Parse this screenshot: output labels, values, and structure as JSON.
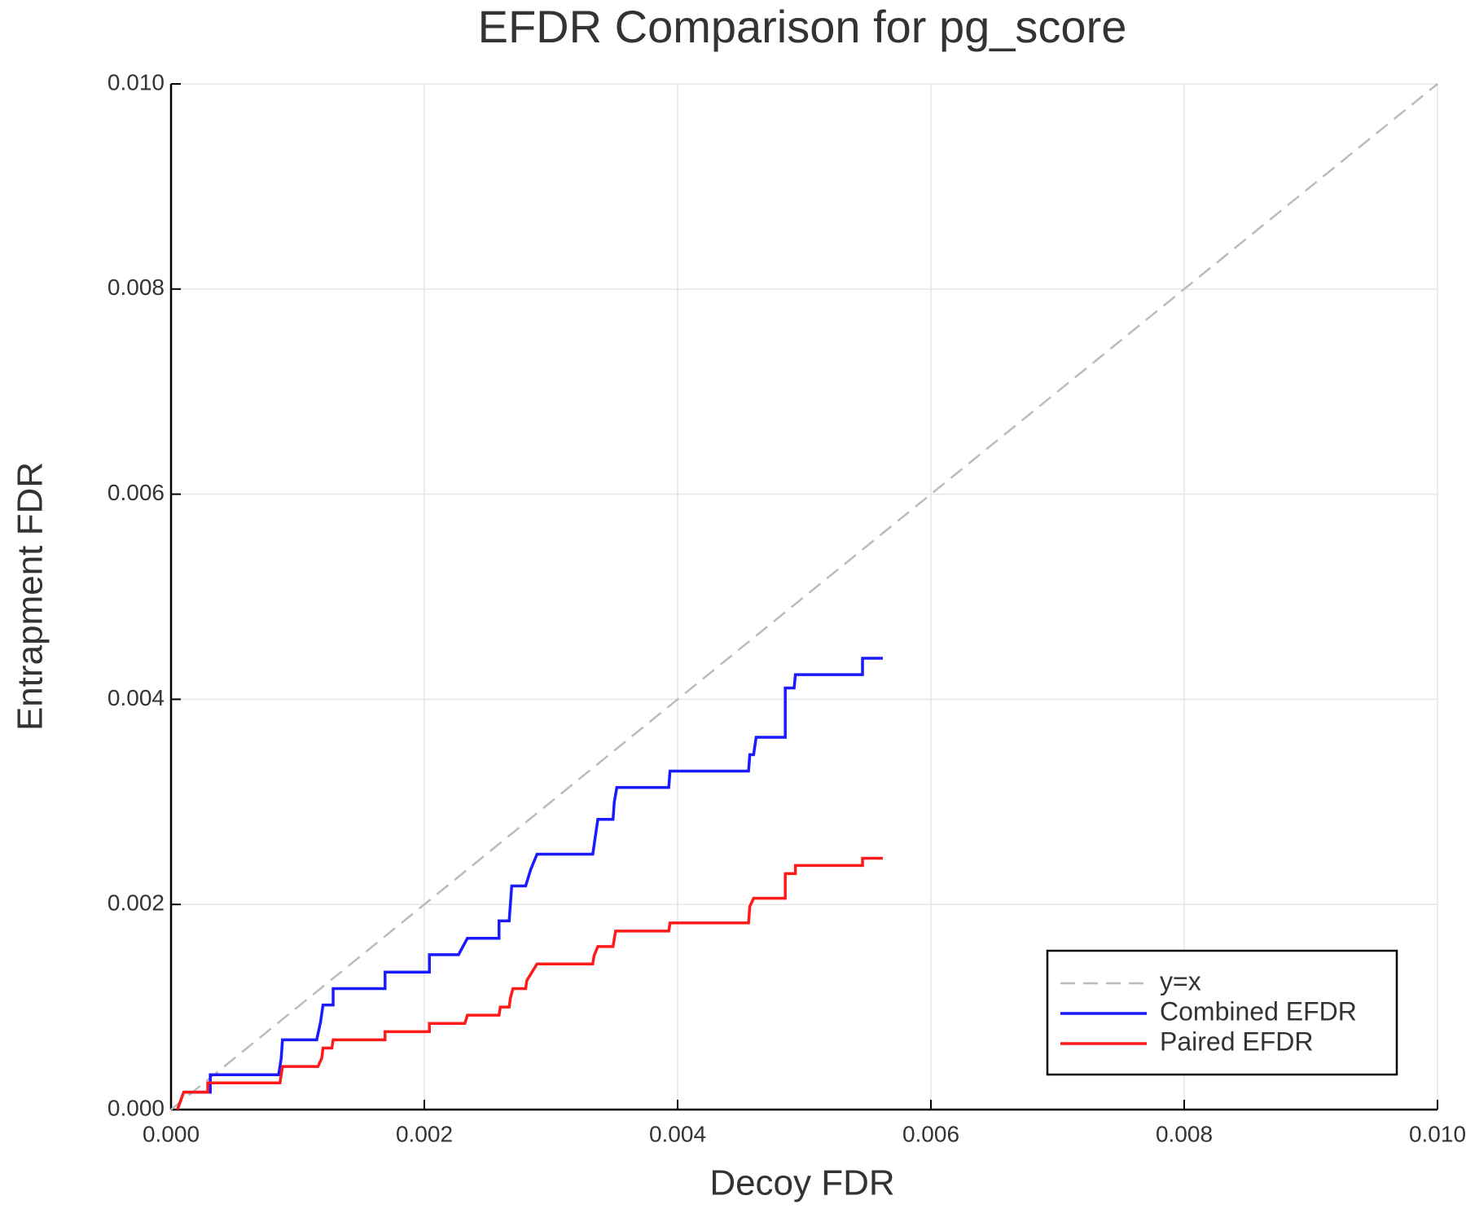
{
  "chart_data": {
    "type": "line",
    "title": "EFDR Comparison for pg_score",
    "x_label": "Decoy FDR",
    "y_label": "Entrapment FDR",
    "xlim": [
      0,
      0.01
    ],
    "ylim": [
      0,
      0.01
    ],
    "xticks": [
      {
        "value": 0,
        "label": "0.000"
      },
      {
        "value": 0.002,
        "label": "0.002"
      },
      {
        "value": 0.004,
        "label": "0.004"
      },
      {
        "value": 0.006,
        "label": "0.006"
      },
      {
        "value": 0.008,
        "label": "0.008"
      },
      {
        "value": 0.01,
        "label": "0.010"
      }
    ],
    "yticks": [
      {
        "value": 0,
        "label": "0.000"
      },
      {
        "value": 0.002,
        "label": "0.002"
      },
      {
        "value": 0.004,
        "label": "0.004"
      },
      {
        "value": 0.006,
        "label": "0.006"
      },
      {
        "value": 0.008,
        "label": "0.008"
      },
      {
        "value": 0.01,
        "label": "0.010"
      }
    ],
    "grid": true,
    "legend": "bottom right",
    "series": [
      {
        "name": "y=x",
        "color": "#bbbbbb",
        "dashed": true,
        "x": [
          0,
          0.01
        ],
        "values": [
          0,
          0.01
        ]
      },
      {
        "name": "Combined EFDR",
        "color": "#1a1aff",
        "dashed": false,
        "x": [
          0.0001,
          0.00031,
          0.00031,
          0.00085,
          0.00087,
          0.00088,
          0.00115,
          0.00118,
          0.0012,
          0.00128,
          0.00128,
          0.00169,
          0.00169,
          0.00204,
          0.00204,
          0.00227,
          0.00234,
          0.00259,
          0.00259,
          0.00267,
          0.00269,
          0.0028,
          0.00284,
          0.00289,
          0.00333,
          0.00335,
          0.00337,
          0.00349,
          0.0035,
          0.00352,
          0.00393,
          0.00394,
          0.00456,
          0.00457,
          0.0046,
          0.00462,
          0.00485,
          0.00485,
          0.00492,
          0.00493,
          0.00546,
          0.00546,
          0.00562
        ],
        "values": [
          0.00017,
          0.00017,
          0.00034,
          0.00034,
          0.0005,
          0.00068,
          0.00068,
          0.00085,
          0.00102,
          0.00102,
          0.00118,
          0.00118,
          0.00134,
          0.00134,
          0.00151,
          0.00151,
          0.00167,
          0.00167,
          0.00184,
          0.00184,
          0.00218,
          0.00218,
          0.00234,
          0.00249,
          0.00249,
          0.00266,
          0.00283,
          0.00283,
          0.003,
          0.00314,
          0.00314,
          0.0033,
          0.0033,
          0.00346,
          0.00346,
          0.00363,
          0.00363,
          0.00411,
          0.00411,
          0.00424,
          0.00424,
          0.0044,
          0.0044
        ]
      },
      {
        "name": "Paired EFDR",
        "color": "#ff1a1a",
        "dashed": false,
        "x": [
          5e-05,
          0.0001,
          0.00029,
          0.00029,
          0.00086,
          0.00088,
          0.00116,
          0.00119,
          0.0012,
          0.00127,
          0.00128,
          0.00169,
          0.00169,
          0.00204,
          0.00204,
          0.00232,
          0.00234,
          0.00259,
          0.0026,
          0.00267,
          0.00268,
          0.0027,
          0.0028,
          0.00281,
          0.00285,
          0.00289,
          0.00333,
          0.00334,
          0.00337,
          0.00349,
          0.00351,
          0.00393,
          0.00394,
          0.00456,
          0.00457,
          0.0046,
          0.00485,
          0.00485,
          0.00493,
          0.00493,
          0.00546,
          0.00546,
          0.00562
        ],
        "values": [
          0,
          0.00017,
          0.00017,
          0.00026,
          0.00026,
          0.00042,
          0.00042,
          0.0005,
          0.0006,
          0.0006,
          0.00068,
          0.00068,
          0.00076,
          0.00076,
          0.00084,
          0.00084,
          0.00092,
          0.00092,
          0.001,
          0.001,
          0.00109,
          0.00118,
          0.00118,
          0.00126,
          0.00134,
          0.00142,
          0.00142,
          0.0015,
          0.00159,
          0.00159,
          0.00174,
          0.00174,
          0.00182,
          0.00182,
          0.00198,
          0.00206,
          0.00206,
          0.0023,
          0.0023,
          0.00238,
          0.00238,
          0.00245,
          0.00245
        ]
      }
    ]
  }
}
